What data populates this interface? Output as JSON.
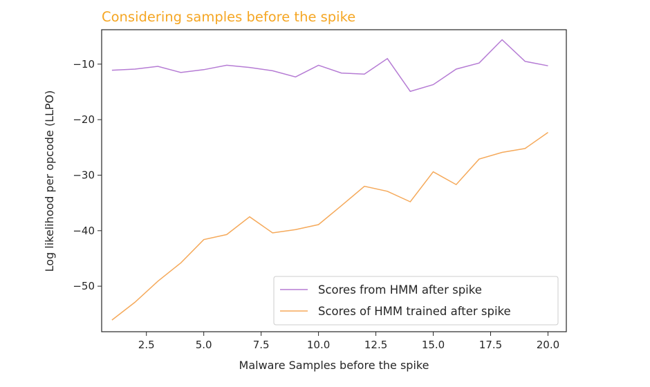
{
  "chart_data": {
    "type": "line",
    "title": "Considering samples before the spike",
    "title_color": "#f5a623",
    "xlabel": "Malware Samples before the spike",
    "ylabel": "Log likelihood per opcode (LLPO)",
    "xlim": [
      0.55,
      20.8
    ],
    "ylim": [
      -58.2,
      -3.8
    ],
    "xticks": [
      2.5,
      5.0,
      7.5,
      10.0,
      12.5,
      15.0,
      17.5,
      20.0
    ],
    "xtick_labels": [
      "2.5",
      "5.0",
      "7.5",
      "10.0",
      "12.5",
      "15.0",
      "17.5",
      "20.0"
    ],
    "yticks": [
      -10,
      -20,
      -30,
      -40,
      -50
    ],
    "ytick_labels": [
      "−10",
      "−20",
      "−30",
      "−40",
      "−50"
    ],
    "grid": false,
    "legend_position": "lower-right",
    "x": [
      1,
      2,
      3,
      4,
      5,
      6,
      7,
      8,
      9,
      10,
      11,
      12,
      13,
      14,
      15,
      16,
      17,
      18,
      19,
      20
    ],
    "series": [
      {
        "name": "Scores from HMM after spike",
        "color": "#b57bd4",
        "values": [
          -11.1,
          -10.9,
          -10.4,
          -11.5,
          -11.0,
          -10.2,
          -10.6,
          -11.2,
          -12.3,
          -10.2,
          -11.6,
          -11.8,
          -9.0,
          -14.9,
          -13.7,
          -10.9,
          -9.8,
          -5.6,
          -9.5,
          -10.3
        ]
      },
      {
        "name": "Scores of HMM trained after spike",
        "color": "#f5a95a",
        "values": [
          -56.1,
          -52.9,
          -49.1,
          -45.8,
          -41.6,
          -40.7,
          -37.5,
          -40.4,
          -39.8,
          -38.9,
          -35.5,
          -32.0,
          -32.9,
          -34.8,
          -29.4,
          -31.7,
          -27.1,
          -25.9,
          -25.2,
          -22.3
        ]
      }
    ]
  }
}
